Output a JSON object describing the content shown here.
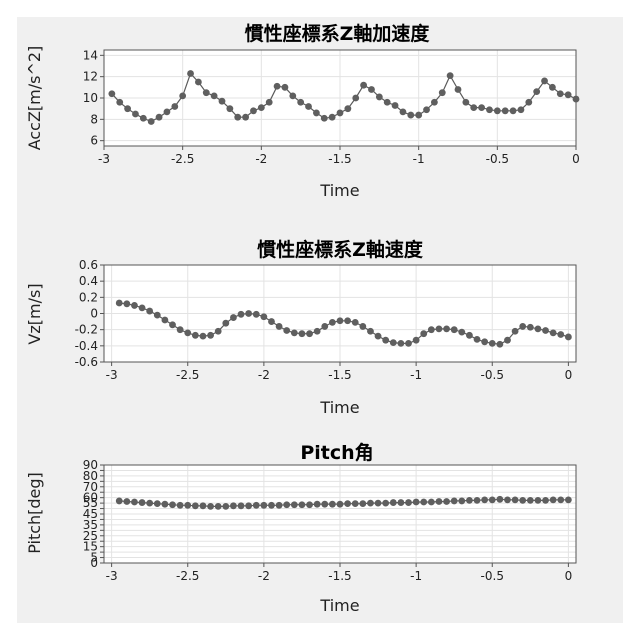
{
  "chart_data": [
    {
      "type": "line",
      "title": "慣性座標系Z軸加速度",
      "xlabel": "Time",
      "ylabel": "AccZ[m/s^2]",
      "xlim": [
        -3,
        0
      ],
      "ylim": [
        5.5,
        14.5
      ],
      "xticks": [
        -3,
        -2.5,
        -2,
        -1.5,
        -1,
        -0.5,
        0
      ],
      "yticks": [
        6,
        8,
        10,
        12,
        14
      ],
      "grid": true,
      "color": "#5f5f5f",
      "x": [
        -2.95,
        -2.9,
        -2.85,
        -2.8,
        -2.75,
        -2.7,
        -2.65,
        -2.6,
        -2.55,
        -2.5,
        -2.45,
        -2.4,
        -2.35,
        -2.3,
        -2.25,
        -2.2,
        -2.15,
        -2.1,
        -2.05,
        -2.0,
        -1.95,
        -1.9,
        -1.85,
        -1.8,
        -1.75,
        -1.7,
        -1.65,
        -1.6,
        -1.55,
        -1.5,
        -1.45,
        -1.4,
        -1.35,
        -1.3,
        -1.25,
        -1.2,
        -1.15,
        -1.1,
        -1.05,
        -1.0,
        -0.95,
        -0.9,
        -0.85,
        -0.8,
        -0.75,
        -0.7,
        -0.65,
        -0.6,
        -0.55,
        -0.5,
        -0.45,
        -0.4,
        -0.35,
        -0.3,
        -0.25,
        -0.2,
        -0.15,
        -0.1,
        -0.05,
        0.0
      ],
      "y": [
        10.4,
        9.6,
        9.0,
        8.5,
        8.1,
        7.8,
        8.2,
        8.7,
        9.2,
        10.2,
        12.3,
        11.5,
        10.5,
        10.2,
        9.7,
        9.0,
        8.2,
        8.2,
        8.8,
        9.1,
        9.6,
        11.1,
        11.0,
        10.2,
        9.6,
        9.2,
        8.6,
        8.1,
        8.2,
        8.6,
        9.0,
        10.0,
        11.2,
        10.8,
        10.1,
        9.6,
        9.3,
        8.7,
        8.4,
        8.4,
        8.9,
        9.6,
        10.5,
        12.1,
        10.8,
        9.6,
        9.1,
        9.1,
        8.9,
        8.8,
        8.8,
        8.8,
        8.9,
        9.6,
        10.6,
        11.6,
        11.0,
        10.4,
        10.3,
        9.9
      ]
    },
    {
      "type": "line",
      "title": "慣性座標系Z軸速度",
      "xlabel": "Time",
      "ylabel": "Vz[m/s]",
      "xlim": [
        -3.05,
        0.05
      ],
      "ylim": [
        -0.6,
        0.6
      ],
      "xticks": [
        -3,
        -2.5,
        -2,
        -1.5,
        -1,
        -0.5,
        0
      ],
      "yticks": [
        -0.6,
        -0.4,
        -0.2,
        0,
        0.2,
        0.4,
        0.6
      ],
      "grid": true,
      "color": "#5f5f5f",
      "x": [
        -2.95,
        -2.9,
        -2.85,
        -2.8,
        -2.75,
        -2.7,
        -2.65,
        -2.6,
        -2.55,
        -2.5,
        -2.45,
        -2.4,
        -2.35,
        -2.3,
        -2.25,
        -2.2,
        -2.15,
        -2.1,
        -2.05,
        -2.0,
        -1.95,
        -1.9,
        -1.85,
        -1.8,
        -1.75,
        -1.7,
        -1.65,
        -1.6,
        -1.55,
        -1.5,
        -1.45,
        -1.4,
        -1.35,
        -1.3,
        -1.25,
        -1.2,
        -1.15,
        -1.1,
        -1.05,
        -1.0,
        -0.95,
        -0.9,
        -0.85,
        -0.8,
        -0.75,
        -0.7,
        -0.65,
        -0.6,
        -0.55,
        -0.5,
        -0.45,
        -0.4,
        -0.35,
        -0.3,
        -0.25,
        -0.2,
        -0.15,
        -0.1,
        -0.05,
        0.0
      ],
      "y": [
        0.13,
        0.12,
        0.1,
        0.07,
        0.03,
        -0.02,
        -0.08,
        -0.14,
        -0.2,
        -0.24,
        -0.27,
        -0.28,
        -0.27,
        -0.22,
        -0.12,
        -0.05,
        -0.01,
        0.0,
        -0.01,
        -0.04,
        -0.1,
        -0.16,
        -0.21,
        -0.24,
        -0.25,
        -0.25,
        -0.22,
        -0.16,
        -0.11,
        -0.09,
        -0.09,
        -0.11,
        -0.16,
        -0.22,
        -0.28,
        -0.33,
        -0.36,
        -0.37,
        -0.37,
        -0.33,
        -0.25,
        -0.2,
        -0.19,
        -0.19,
        -0.2,
        -0.23,
        -0.27,
        -0.32,
        -0.35,
        -0.37,
        -0.38,
        -0.33,
        -0.22,
        -0.16,
        -0.17,
        -0.19,
        -0.21,
        -0.24,
        -0.26,
        -0.29
      ]
    },
    {
      "type": "line",
      "title": "Pitch角",
      "xlabel": "Time",
      "ylabel": "Pitch[deg]",
      "xlim": [
        -3.05,
        0.05
      ],
      "ylim": [
        0,
        90
      ],
      "xticks": [
        -3,
        -2.5,
        -2,
        -1.5,
        -1,
        -0.5,
        0
      ],
      "yticks": [
        0,
        5,
        10,
        15,
        20,
        25,
        30,
        35,
        40,
        45,
        50,
        55,
        60,
        65,
        70,
        75,
        80,
        85,
        90
      ],
      "yticklabels": [
        "0",
        "5",
        "15",
        "25",
        "35",
        "45",
        "55",
        "60",
        "70",
        "80",
        "90"
      ],
      "grid": true,
      "color": "#5f5f5f",
      "x": [
        -2.95,
        -2.9,
        -2.85,
        -2.8,
        -2.75,
        -2.7,
        -2.65,
        -2.6,
        -2.55,
        -2.5,
        -2.45,
        -2.4,
        -2.35,
        -2.3,
        -2.25,
        -2.2,
        -2.15,
        -2.1,
        -2.05,
        -2.0,
        -1.95,
        -1.9,
        -1.85,
        -1.8,
        -1.75,
        -1.7,
        -1.65,
        -1.6,
        -1.55,
        -1.5,
        -1.45,
        -1.4,
        -1.35,
        -1.3,
        -1.25,
        -1.2,
        -1.15,
        -1.1,
        -1.05,
        -1.0,
        -0.95,
        -0.9,
        -0.85,
        -0.8,
        -0.75,
        -0.7,
        -0.65,
        -0.6,
        -0.55,
        -0.5,
        -0.45,
        -0.4,
        -0.35,
        -0.3,
        -0.25,
        -0.2,
        -0.15,
        -0.1,
        -0.05,
        0.0
      ],
      "y": [
        57,
        56.5,
        56,
        55.5,
        55,
        54.5,
        54,
        53.5,
        53,
        53,
        52.5,
        52.5,
        52,
        52,
        52,
        52.5,
        52.5,
        52.5,
        53,
        53,
        53,
        53,
        53.5,
        53.5,
        53.5,
        53.5,
        54,
        54,
        54,
        54,
        54.5,
        54.5,
        54.5,
        55,
        55,
        55,
        55.5,
        55.5,
        55.5,
        56,
        56,
        56,
        56.5,
        56.5,
        57,
        57,
        57.5,
        57.5,
        58,
        58,
        58.5,
        58,
        58,
        57.5,
        57.5,
        57.5,
        57.5,
        58,
        58,
        58
      ]
    }
  ]
}
